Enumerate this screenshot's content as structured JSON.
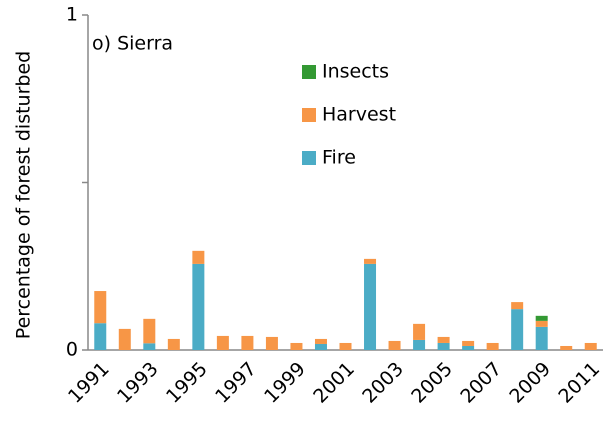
{
  "chart_data": {
    "type": "stacked_bar",
    "title": "o) Sierra",
    "y_label": "Percentage of forest disturbed",
    "categories": [
      "1991",
      null,
      "1993",
      null,
      "1995",
      null,
      "1997",
      null,
      "1999",
      null,
      "2001",
      null,
      "2003",
      null,
      "2005",
      null,
      "2007",
      null,
      "2009",
      null,
      "2011"
    ],
    "series": [
      {
        "name": "Fire",
        "color": "#4bacc6",
        "values": [
          0.08,
          0,
          0.02,
          0,
          0.257,
          0,
          0,
          0,
          0,
          0.018,
          0,
          0.257,
          0,
          0.03,
          0.021,
          0.012,
          0,
          0.122,
          0.069,
          0,
          0
        ]
      },
      {
        "name": "Harvest",
        "color": "#f79646",
        "values": [
          0.096,
          0.063,
          0.073,
          0.033,
          0.039,
          0.042,
          0.042,
          0.039,
          0.021,
          0.015,
          0.021,
          0.015,
          0.027,
          0.048,
          0.018,
          0.015,
          0.021,
          0.021,
          0.018,
          0.012,
          0.021
        ]
      },
      {
        "name": "Insects",
        "color": "#339933",
        "values": [
          0,
          0,
          0,
          0,
          0,
          0,
          0,
          0,
          0,
          0,
          0,
          0,
          0,
          0,
          0,
          0,
          0,
          0,
          0.015,
          0,
          0
        ]
      }
    ],
    "ylim": [
      0,
      1
    ],
    "yticks": [
      0,
      1
    ],
    "yminor_ticks": [
      0.5
    ],
    "grid": false
  }
}
